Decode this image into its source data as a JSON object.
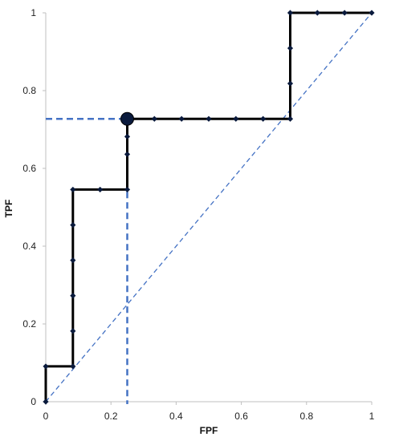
{
  "chart_data": {
    "type": "line",
    "title": "",
    "xlabel": "FPF",
    "ylabel": "TPF",
    "xlim": [
      0,
      1
    ],
    "ylim": [
      0,
      1
    ],
    "xticks": [
      0,
      0.2,
      0.4,
      0.6,
      0.8,
      1
    ],
    "yticks": [
      0,
      0.2,
      0.4,
      0.6,
      0.8,
      1
    ],
    "x_tick_labels": [
      "0",
      "0.2",
      "0.4",
      "0.6",
      "0.8",
      "1"
    ],
    "y_tick_labels": [
      "0",
      "0.2",
      "0.4",
      "0.6",
      "0.8",
      "1"
    ],
    "grid": false,
    "series": [
      {
        "style": "solid",
        "color": "#000000",
        "marker_color": "#0a1a3c",
        "marker": "diamond",
        "x": [
          0,
          0,
          0.0833,
          0.0833,
          0.0833,
          0.0833,
          0.0833,
          0.0833,
          0.1667,
          0.25,
          0.25,
          0.25,
          0.25,
          0.3333,
          0.4167,
          0.5,
          0.5833,
          0.6667,
          0.75,
          0.75,
          0.75,
          0.75,
          0.8333,
          0.9167,
          1
        ],
        "y": [
          0,
          0.0909,
          0.0909,
          0.1818,
          0.2727,
          0.3636,
          0.4545,
          0.5455,
          0.5455,
          0.5455,
          0.6364,
          0.6818,
          0.7273,
          0.7273,
          0.7273,
          0.7273,
          0.7273,
          0.7273,
          0.7273,
          0.8182,
          0.9091,
          1,
          1,
          1,
          1
        ]
      },
      {
        "style": "dashed",
        "color": "#4472c4",
        "x": [
          0,
          1
        ],
        "y": [
          0,
          1
        ]
      }
    ],
    "highlight_point": {
      "x": 0.25,
      "y": 0.7273,
      "color": "#0a1a3c",
      "guide_color": "#4472c4"
    }
  }
}
